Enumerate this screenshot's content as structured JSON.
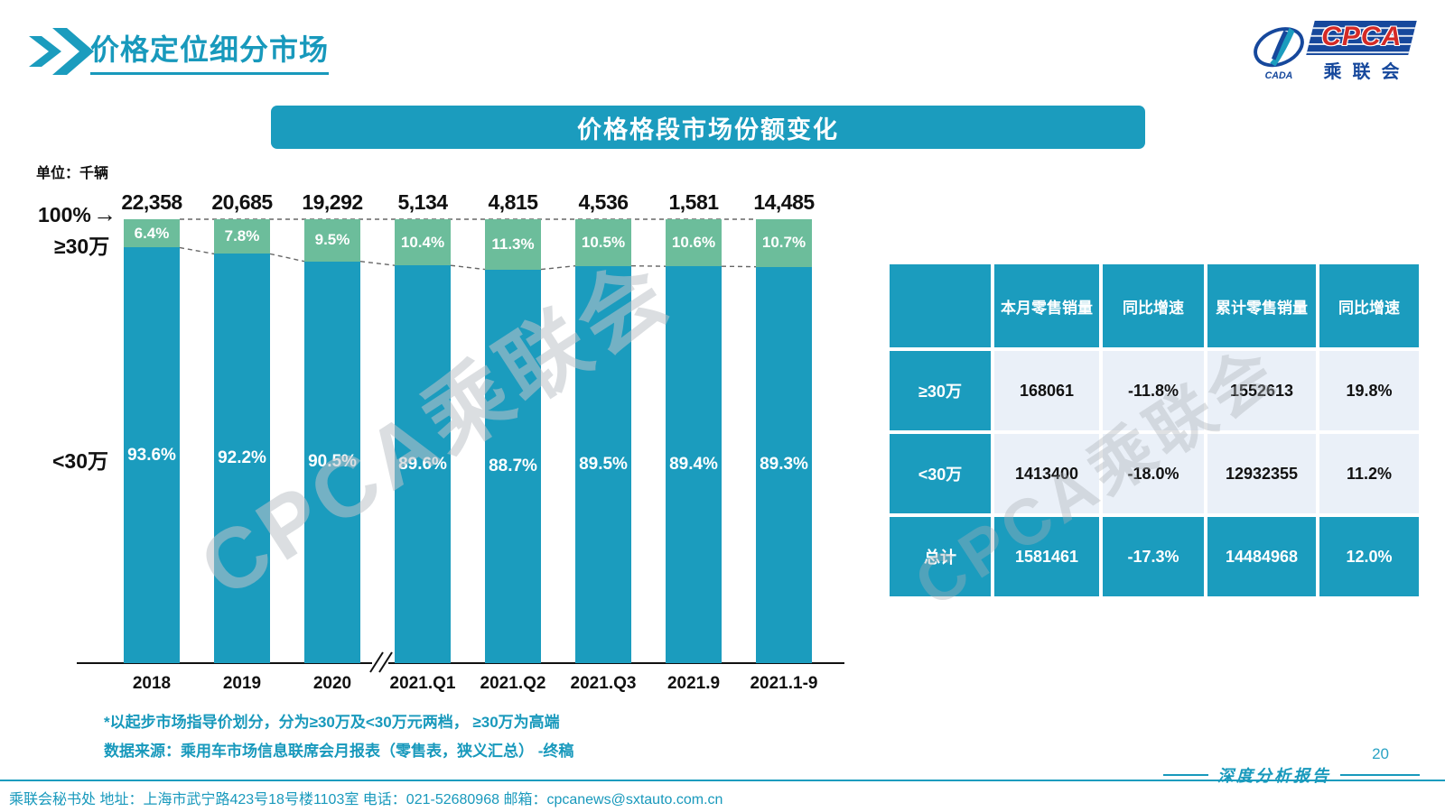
{
  "page": {
    "title": "价格定位细分市场",
    "page_number": "20",
    "report_label": "深度分析报告"
  },
  "logo": {
    "cpca": "CPCA",
    "chinese": "乘联会",
    "cada": "CADA"
  },
  "banner": {
    "title": "价格格段市场份额变化"
  },
  "chart_meta": {
    "unit_label": "单位：千辆",
    "top_axis_label": "100%",
    "arrow": "→",
    "upper_segment_label": "≥30万",
    "lower_segment_label": "<30万"
  },
  "chart_data": {
    "type": "bar",
    "stacked": true,
    "title": "价格格段市场份额变化",
    "unit": "千辆",
    "ylim": [
      0,
      100
    ],
    "categories": [
      "2018",
      "2019",
      "2020",
      "2021.Q1",
      "2021.Q2",
      "2021.Q3",
      "2021.9",
      "2021.1-9"
    ],
    "totals": [
      "22,358",
      "20,685",
      "19,292",
      "5,134",
      "4,815",
      "4,536",
      "1,581",
      "14,485"
    ],
    "series": [
      {
        "name": "≥30万",
        "values": [
          6.4,
          7.8,
          9.5,
          10.4,
          11.3,
          10.5,
          10.6,
          10.7
        ],
        "color": "#6CBD9B"
      },
      {
        "name": "<30万",
        "values": [
          93.6,
          92.2,
          90.5,
          89.6,
          88.7,
          89.5,
          89.4,
          89.3
        ],
        "color": "#1B9CBE"
      }
    ],
    "axis_break_after": "2020",
    "legend_position": "left-of-bars"
  },
  "table": {
    "headers": [
      "",
      "本月零售销量",
      "同比增速",
      "累计零售销量",
      "同比增速"
    ],
    "rows": [
      {
        "label": "≥30万",
        "cells": [
          "168061",
          "-11.8%",
          "1552613",
          "19.8%"
        ],
        "style": "light"
      },
      {
        "label": "<30万",
        "cells": [
          "1413400",
          "-18.0%",
          "12932355",
          "11.2%"
        ],
        "style": "light"
      },
      {
        "label": "总计",
        "cells": [
          "1581461",
          "-17.3%",
          "14484968",
          "12.0%"
        ],
        "style": "teal"
      }
    ]
  },
  "footnotes": {
    "line1": "*以起步市场指导价划分，分为≥30万及<30万元两档， ≥30万为高端",
    "line2": "数据来源：乘用车市场信息联席会月报表（零售表，狭义汇总） -终稿"
  },
  "footer": {
    "text": "乘联会秘书处   地址：上海市武宁路423号18号楼1103室 电话：021-52680968   邮箱：cpcanews@sxtauto.com.cn"
  },
  "watermark": {
    "text": "CPCA乘联会"
  },
  "colors": {
    "accent": "#1B9CBE",
    "title_teal": "#1899BC",
    "green": "#6CBD9B",
    "light_cell": "#EAF0F8"
  }
}
